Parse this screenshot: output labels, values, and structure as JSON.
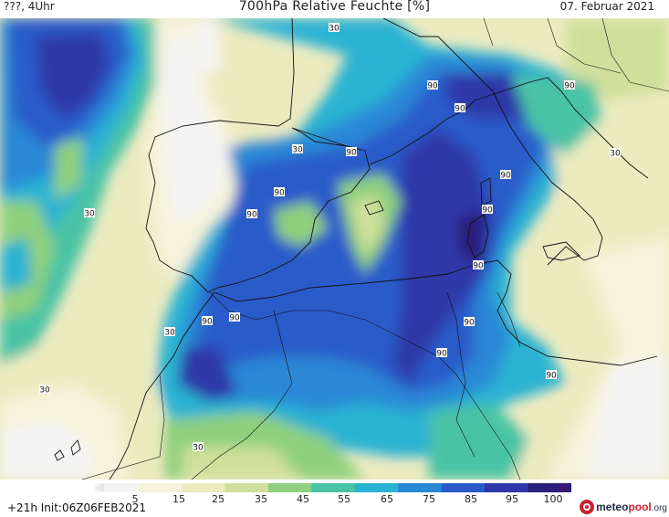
{
  "header": {
    "left": "???, 4Uhr",
    "title": "700hPa Relative Feuchte [%]",
    "date": "07. Februar 2021"
  },
  "map": {
    "contour_labels": [
      {
        "text": "30"
      },
      {
        "text": "90"
      },
      {
        "text": "90"
      },
      {
        "text": "90"
      },
      {
        "text": "90"
      },
      {
        "text": "30"
      },
      {
        "text": "90"
      },
      {
        "text": "30"
      },
      {
        "text": "90"
      },
      {
        "text": "90"
      },
      {
        "text": "90"
      },
      {
        "text": "90"
      },
      {
        "text": "90"
      },
      {
        "text": "90"
      },
      {
        "text": "90"
      },
      {
        "text": "90"
      },
      {
        "text": "30"
      },
      {
        "text": "90"
      },
      {
        "text": "30"
      },
      {
        "text": "30"
      },
      {
        "text": "30"
      }
    ]
  },
  "colorbar": {
    "ticks": [
      "5",
      "15",
      "25",
      "35",
      "45",
      "55",
      "65",
      "75",
      "85",
      "95",
      "100"
    ],
    "colors": [
      "#f4f4f4",
      "#f6f3dc",
      "#ecebc0",
      "#d0e09c",
      "#8fd07e",
      "#49c3a6",
      "#2bb2d3",
      "#2a88d6",
      "#2a5bc9",
      "#2e38a8",
      "#2a1f78"
    ]
  },
  "footer": {
    "run": "+21h  Init:06Z06FEB2021",
    "logo_main": "meteo",
    "logo_accent": "pool",
    "logo_tld": ".org"
  }
}
